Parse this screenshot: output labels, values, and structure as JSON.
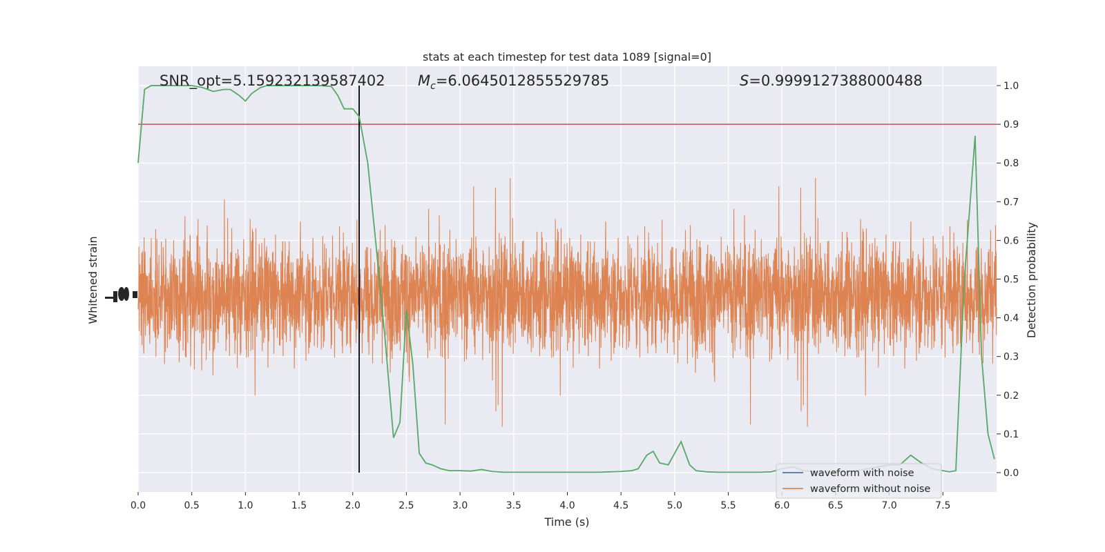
{
  "chart_data": {
    "type": "line",
    "title": "stats at each timestep for test data 1089 [signal=0]",
    "xlabel": "Time (s)",
    "ylabel_left": "Whitened strain",
    "ylabel_right": "Detection probability",
    "xlim": [
      0,
      8
    ],
    "ylim_right": [
      -0.05,
      1.05
    ],
    "x_ticks": [
      "0.0",
      "0.5",
      "1.0",
      "1.5",
      "2.0",
      "2.5",
      "3.0",
      "3.5",
      "4.0",
      "4.5",
      "5.0",
      "5.5",
      "6.0",
      "6.5",
      "7.0",
      "7.5"
    ],
    "y_ticks_right": [
      "0.0",
      "0.1",
      "0.2",
      "0.3",
      "0.4",
      "0.5",
      "0.6",
      "0.7",
      "0.8",
      "0.9",
      "1.0"
    ],
    "annotations": {
      "snr": "SNR_opt=5.159232139587402",
      "mc_symbol": "M",
      "mc_sub": "c",
      "mc_value": "=6.0645012855529785",
      "s_symbol": "S",
      "s_value": "=0.9999127388000488"
    },
    "threshold": 0.9,
    "marker_time": 2.06,
    "colors": {
      "noise": "#4c72b0",
      "waveform": "#dd8452",
      "probability": "#55a868",
      "threshold": "#c44e52",
      "marker": "#000000"
    },
    "legend": {
      "placement": "lower right",
      "entries": [
        "waveform with noise",
        "waveform without noise"
      ]
    },
    "series": [
      {
        "name": "Detection probability",
        "x": [
          0.0,
          0.06,
          0.12,
          0.2,
          0.3,
          0.4,
          0.5,
          0.6,
          0.7,
          0.8,
          0.86,
          0.94,
          1.0,
          1.06,
          1.14,
          1.2,
          1.3,
          1.4,
          1.5,
          1.6,
          1.7,
          1.8,
          1.86,
          1.92,
          2.0,
          2.06,
          2.14,
          2.22,
          2.3,
          2.38,
          2.44,
          2.5,
          2.56,
          2.62,
          2.68,
          2.74,
          2.82,
          2.9,
          3.0,
          3.1,
          3.2,
          3.3,
          3.4,
          3.5,
          3.6,
          3.7,
          3.8,
          3.9,
          4.0,
          4.1,
          4.2,
          4.3,
          4.4,
          4.5,
          4.6,
          4.66,
          4.74,
          4.8,
          4.86,
          4.94,
          5.0,
          5.06,
          5.14,
          5.2,
          5.3,
          5.4,
          5.5,
          5.6,
          5.7,
          5.8,
          5.9,
          6.0,
          6.1,
          6.2,
          6.3,
          6.4,
          6.5,
          6.6,
          6.7,
          6.8,
          6.9,
          7.0,
          7.1,
          7.2,
          7.3,
          7.4,
          7.5,
          7.56,
          7.62,
          7.7,
          7.8,
          7.86,
          7.92,
          7.98
        ],
        "values": [
          0.8,
          0.99,
          1.0,
          1.0,
          1.0,
          1.0,
          1.0,
          0.995,
          0.985,
          0.99,
          0.99,
          0.975,
          0.96,
          0.98,
          0.995,
          1.0,
          1.0,
          1.0,
          1.0,
          1.0,
          1.0,
          0.998,
          0.975,
          0.94,
          0.94,
          0.92,
          0.8,
          0.58,
          0.35,
          0.09,
          0.13,
          0.42,
          0.28,
          0.05,
          0.025,
          0.02,
          0.01,
          0.005,
          0.005,
          0.004,
          0.008,
          0.003,
          0.001,
          0.001,
          0.001,
          0.001,
          0.001,
          0.001,
          0.001,
          0.001,
          0.001,
          0.001,
          0.002,
          0.003,
          0.005,
          0.01,
          0.045,
          0.055,
          0.025,
          0.02,
          0.05,
          0.08,
          0.02,
          0.005,
          0.002,
          0.001,
          0.001,
          0.001,
          0.001,
          0.001,
          0.002,
          0.01,
          0.015,
          0.005,
          0.002,
          0.001,
          0.001,
          0.002,
          0.005,
          0.01,
          0.015,
          0.02,
          0.02,
          0.045,
          0.025,
          0.01,
          0.005,
          0.002,
          0.005,
          0.5,
          0.87,
          0.3,
          0.1,
          0.035
        ]
      }
    ]
  }
}
